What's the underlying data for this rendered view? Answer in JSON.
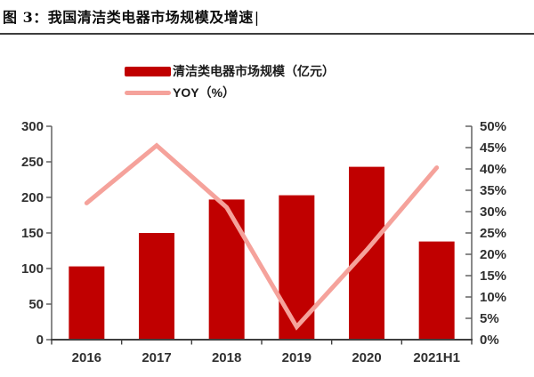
{
  "title": {
    "text": "图 3：我国清洁类电器市场规模及增速",
    "cursor": "|"
  },
  "legend": [
    {
      "label": "清洁类电器市场规模（亿元）",
      "swatch": "bar",
      "color": "#C00000"
    },
    {
      "label": "YOY（%）",
      "swatch": "line",
      "color": "#F5A29B"
    }
  ],
  "chart_data": {
    "type": "bar+line combo",
    "title": "我国清洁类电器市场规模及增速",
    "categories": [
      "2016",
      "2017",
      "2018",
      "2019",
      "2020",
      "2021H1"
    ],
    "series": [
      {
        "name": "清洁类电器市场规模（亿元）",
        "type": "bar",
        "axis": "left",
        "color": "#C00000",
        "values": [
          103,
          150,
          197,
          203,
          243,
          138
        ]
      },
      {
        "name": "YOY（%）",
        "type": "line",
        "axis": "right",
        "color": "#F5A29B",
        "values": [
          32,
          45.5,
          31,
          3,
          21,
          40.3
        ]
      }
    ],
    "left_axis": {
      "min": 0,
      "max": 300,
      "step": 50,
      "ticks": [
        "0",
        "50",
        "100",
        "150",
        "200",
        "250",
        "300"
      ]
    },
    "right_axis": {
      "min": 0,
      "max": 50,
      "step": 5,
      "unit": "%",
      "ticks": [
        "0%",
        "5%",
        "10%",
        "15%",
        "20%",
        "25%",
        "30%",
        "35%",
        "40%",
        "45%",
        "50%"
      ]
    },
    "grid": false,
    "legend_position": "top",
    "axis_color": "#595959",
    "baseline_color": "#3f3f3f"
  }
}
